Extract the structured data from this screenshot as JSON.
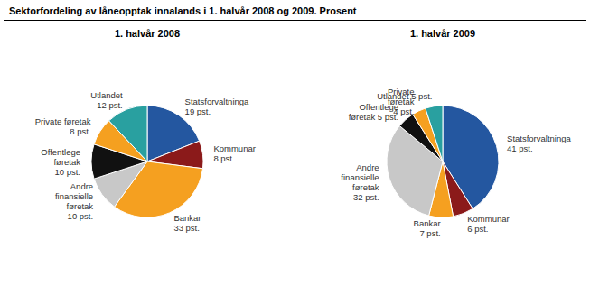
{
  "title": "Sektorfordeling av låneopptak innalands i 1. halvår 2008 og 2009. Prosent",
  "chart_data": [
    {
      "type": "pie",
      "subtitle": "1. halvår 2008",
      "categories": [
        "Statsforvaltninga\n19 pst.",
        "Kommunar\n8 pst.",
        "Bankar\n33 pst.",
        "Andre\nfinansielle\nføretak\n10 pst.",
        "Offentlege\nføretak\n10 pst.",
        "Private føretak\n8 pst.",
        "Utlandet\n12 pst."
      ],
      "values": [
        19,
        8,
        33,
        10,
        10,
        8,
        12
      ],
      "colors": [
        "#2457a0",
        "#8b1a1a",
        "#f5a020",
        "#c8c8c8",
        "#111111",
        "#f5a020",
        "#29a0a0"
      ]
    },
    {
      "type": "pie",
      "subtitle": "1. halvår 2009",
      "categories": [
        "Statsforvaltninga\n41 pst.",
        "Kommunar\n6 pst.",
        "Bankar\n7 pst.",
        "Andre\nfinansielle\nføretak\n32 pst.",
        "Offentlege\nføretak 5 pst.",
        "Private\nføretak\n4 pst.",
        "Utlandet 5 pst."
      ],
      "values": [
        41,
        6,
        7,
        32,
        5,
        4,
        5
      ],
      "colors": [
        "#2457a0",
        "#8b1a1a",
        "#f5a020",
        "#c8c8c8",
        "#111111",
        "#f5a020",
        "#29a0a0"
      ]
    }
  ]
}
